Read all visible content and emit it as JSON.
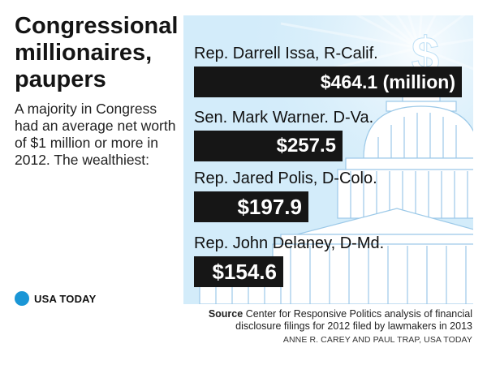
{
  "title": "Congressional millionaires, paupers",
  "intro": "A majority in Congress had an average net worth of $1 million or more in 2012. The wealthiest:",
  "logo": {
    "text": "USA TODAY",
    "icon": "usa-today-dot-logo",
    "color": "#1a96d6"
  },
  "chart_data": {
    "type": "bar",
    "orientation": "horizontal",
    "title": "",
    "unit": "millions of dollars",
    "categories": [
      "Rep. Darrell Issa, R-Calif.",
      "Sen. Mark Warner. D-Va.",
      "Rep. Jared Polis, D-Colo.",
      "Rep. John Delaney, D-Md."
    ],
    "values": [
      464.1,
      257.5,
      197.9,
      154.6
    ],
    "value_labels": [
      "$464.1 (million)",
      "$257.5",
      "$197.9",
      "$154.6"
    ],
    "bar_color": "#161616",
    "background_color": "#d3ecfa"
  },
  "source": {
    "label": "Source",
    "text": "Center for Responsive Politics analysis of financial disclosure filings for 2012 filed by lawmakers in 2013"
  },
  "credit": "ANNE R. CAREY AND PAUL TRAP, USA TODAY"
}
